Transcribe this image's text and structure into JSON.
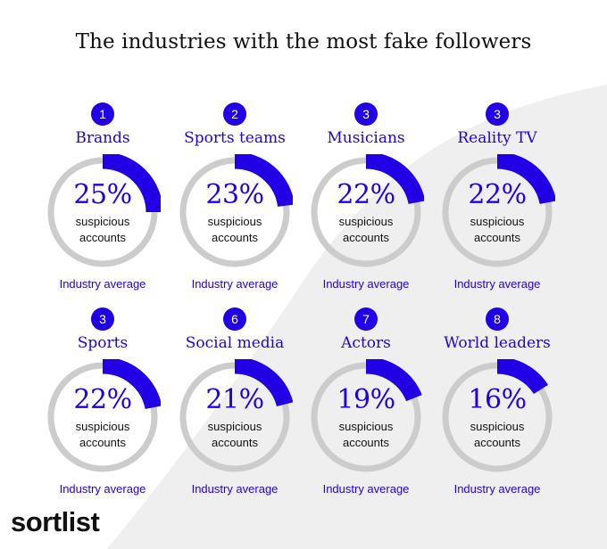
{
  "title": "The industries with the most fake followers",
  "logo": "sortlist",
  "chart_data": {
    "type": "pie",
    "title": "The industries with the most fake followers",
    "unit": "%",
    "items": [
      {
        "rank": "1",
        "category": "Brands",
        "value": 25,
        "value_label": "25%",
        "sublabel_line1": "suspicious",
        "sublabel_line2": "accounts",
        "footer": "Industry average"
      },
      {
        "rank": "2",
        "category": "Sports teams",
        "value": 23,
        "value_label": "23%",
        "sublabel_line1": "suspicious",
        "sublabel_line2": "accounts",
        "footer": "Industry average"
      },
      {
        "rank": "3",
        "category": "Musicians",
        "value": 22,
        "value_label": "22%",
        "sublabel_line1": "suspicious",
        "sublabel_line2": "accounts",
        "footer": "Industry average"
      },
      {
        "rank": "3",
        "category": "Reality TV",
        "value": 22,
        "value_label": "22%",
        "sublabel_line1": "suspicious",
        "sublabel_line2": "accounts",
        "footer": "Industry average"
      },
      {
        "rank": "3",
        "category": "Sports",
        "value": 22,
        "value_label": "22%",
        "sublabel_line1": "suspicious",
        "sublabel_line2": "accounts",
        "footer": "Industry average"
      },
      {
        "rank": "6",
        "category": "Social media",
        "value": 21,
        "value_label": "21%",
        "sublabel_line1": "suspicious",
        "sublabel_line2": "accounts",
        "footer": "Industry average"
      },
      {
        "rank": "7",
        "category": "Actors",
        "value": 19,
        "value_label": "19%",
        "sublabel_line1": "suspicious",
        "sublabel_line2": "accounts",
        "footer": "Industry average"
      },
      {
        "rank": "8",
        "category": "World leaders",
        "value": 16,
        "value_label": "16%",
        "sublabel_line1": "suspicious",
        "sublabel_line2": "accounts",
        "footer": "Industry average"
      }
    ]
  },
  "colors": {
    "accent": "#2200e6",
    "track": "#cccccc",
    "background_shape": "#efefef",
    "text": "#111111"
  }
}
